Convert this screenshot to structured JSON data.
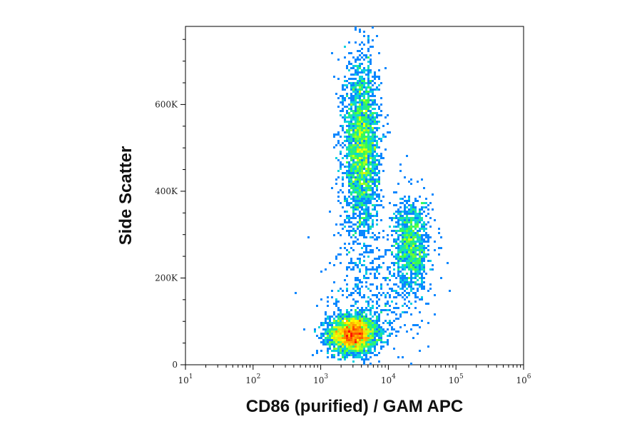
{
  "chart_data": {
    "type": "scatter",
    "title": "",
    "xlabel": "CD86 (purified) / GAM APC",
    "ylabel": "Side Scatter",
    "x_scale": "log",
    "xlim": [
      10,
      1000000
    ],
    "ylim": [
      0,
      780000
    ],
    "x_ticks": [
      {
        "value": 10,
        "base": "10",
        "exp": "1"
      },
      {
        "value": 100,
        "base": "10",
        "exp": "2"
      },
      {
        "value": 1000,
        "base": "10",
        "exp": "3"
      },
      {
        "value": 10000,
        "base": "10",
        "exp": "4"
      },
      {
        "value": 100000,
        "base": "10",
        "exp": "5"
      },
      {
        "value": 1000000,
        "base": "10",
        "exp": "6"
      }
    ],
    "y_ticks": [
      {
        "value": 0,
        "label": "0"
      },
      {
        "value": 200000,
        "label": "200K"
      },
      {
        "value": 400000,
        "label": "400K"
      },
      {
        "value": 600000,
        "label": "600K"
      }
    ],
    "grid": false,
    "legend": "none",
    "colormap": [
      "#1a1aff",
      "#00c8ff",
      "#39ff4a",
      "#ffff00",
      "#ff8c00",
      "#ff0000"
    ],
    "populations": [
      {
        "x_center": 3000,
        "y_center": 70000,
        "x_spread_log": 0.18,
        "y_spread": 22000,
        "weight": 0.4
      },
      {
        "x_center": 4000,
        "y_center": 500000,
        "x_spread_log": 0.13,
        "y_spread": 100000,
        "weight": 0.38
      },
      {
        "x_center": 22000,
        "y_center": 275000,
        "x_spread_log": 0.13,
        "y_spread": 55000,
        "weight": 0.16
      },
      {
        "x_center": 6000,
        "y_center": 160000,
        "x_spread_log": 0.35,
        "y_spread": 70000,
        "weight": 0.06
      }
    ]
  }
}
